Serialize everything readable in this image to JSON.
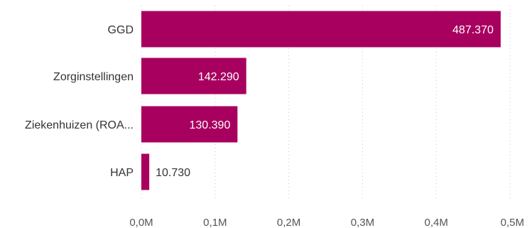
{
  "chart_data": {
    "type": "bar",
    "orientation": "horizontal",
    "categories": [
      "GGD",
      "Zorginstellingen",
      "Ziekenhuizen (ROA...",
      "HAP"
    ],
    "values": [
      487370,
      142290,
      130390,
      10730
    ],
    "value_labels": [
      "487.370",
      "142.290",
      "130.390",
      "10.730"
    ],
    "x_ticks": [
      0,
      100000,
      200000,
      300000,
      400000,
      500000
    ],
    "x_tick_labels": [
      "0,0M",
      "0,1M",
      "0,2M",
      "0,3M",
      "0,4M",
      "0,5M"
    ],
    "xlim": [
      0,
      500000
    ],
    "grid": "vertical dotted",
    "title": "",
    "xlabel": "",
    "ylabel": "",
    "colors": {
      "bar": "#a8005f",
      "value_label_inside": "#ffffff",
      "value_label_outside": "#333333"
    }
  }
}
